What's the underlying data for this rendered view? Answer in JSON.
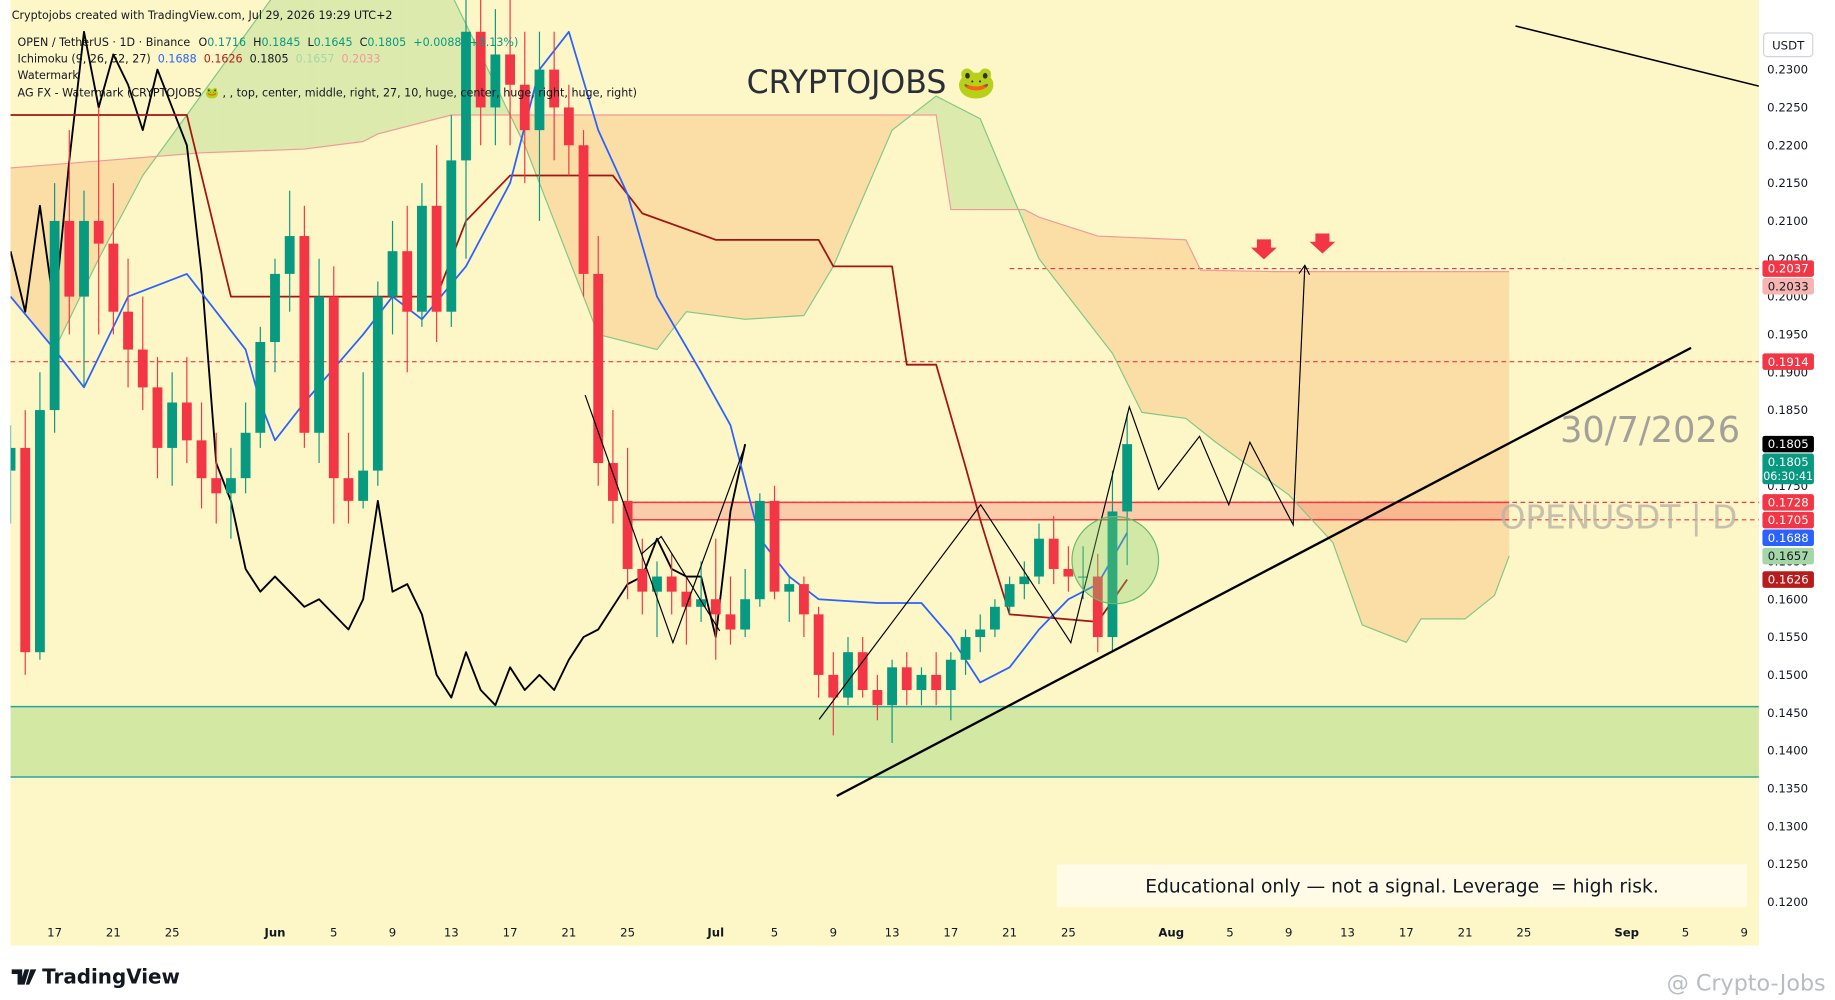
{
  "header": {
    "credit": "Cryptojobs created with TradingView.com, Jul 29, 2026 19:29 UTC+2",
    "symbol": "OPEN / TetherUS · 1D · Binance",
    "ohlc": [
      {
        "key": "O",
        "value": "0.1716"
      },
      {
        "key": "H",
        "value": "0.1845"
      },
      {
        "key": "L",
        "value": "0.1645"
      },
      {
        "key": "C",
        "value": "0.1805"
      }
    ],
    "change": "+0.0088 (+5.13%)",
    "ichimoku_label": "Ichimoku (9, 26, 52, 27)",
    "ichimoku_values": [
      "0.1688",
      "0.1626",
      "0.1805",
      "0.1657",
      "0.2033"
    ],
    "watermark_label": "Watermark",
    "agfx_label": "AG FX - Watermark (CRYPTOJOBS 🐸 , , top, center, middle, right, 27, 10, huge, center, huge, right, huge, right)"
  },
  "watermark": {
    "title": "CRYPTOJOBS 🐸",
    "date": "30/7/2026",
    "symbol": "OPENUSDT | D"
  },
  "note": "Educational only — not a signal. Leverage  = high risk.",
  "footer": {
    "logo": "TradingView",
    "credit": "@ Crypto-Jobs"
  },
  "currency": "USDT",
  "chart_data": {
    "type": "candlestick",
    "x": [
      "2026-05-14",
      "2026-05-15",
      "2026-05-16",
      "2026-05-17",
      "2026-05-18",
      "2026-05-19",
      "2026-05-20",
      "2026-05-21",
      "2026-05-22",
      "2026-05-23",
      "2026-05-24",
      "2026-05-25",
      "2026-05-26",
      "2026-05-27",
      "2026-05-28",
      "2026-05-29",
      "2026-05-30",
      "2026-05-31",
      "2026-06-01",
      "2026-06-02",
      "2026-06-03",
      "2026-06-04",
      "2026-06-05",
      "2026-06-06",
      "2026-06-07",
      "2026-06-08",
      "2026-06-09",
      "2026-06-10",
      "2026-06-11",
      "2026-06-12",
      "2026-06-13",
      "2026-06-14",
      "2026-06-15",
      "2026-06-16",
      "2026-06-17",
      "2026-06-18",
      "2026-06-19",
      "2026-06-20",
      "2026-06-21",
      "2026-06-22",
      "2026-06-23",
      "2026-06-24",
      "2026-06-25",
      "2026-06-26",
      "2026-06-27",
      "2026-06-28",
      "2026-06-29",
      "2026-06-30",
      "2026-07-01",
      "2026-07-02",
      "2026-07-03",
      "2026-07-04",
      "2026-07-05",
      "2026-07-06",
      "2026-07-07",
      "2026-07-08",
      "2026-07-09",
      "2026-07-10",
      "2026-07-11",
      "2026-07-12",
      "2026-07-13",
      "2026-07-14",
      "2026-07-15",
      "2026-07-16",
      "2026-07-17",
      "2026-07-18",
      "2026-07-19",
      "2026-07-20",
      "2026-07-21",
      "2026-07-22",
      "2026-07-23",
      "2026-07-24",
      "2026-07-25",
      "2026-07-26",
      "2026-07-27",
      "2026-07-28",
      "2026-07-29"
    ],
    "open": [
      0.177,
      0.18,
      0.153,
      0.185,
      0.21,
      0.2,
      0.21,
      0.207,
      0.198,
      0.193,
      0.188,
      0.18,
      0.186,
      0.181,
      0.176,
      0.174,
      0.176,
      0.182,
      0.194,
      0.203,
      0.208,
      0.182,
      0.2,
      0.176,
      0.173,
      0.177,
      0.2,
      0.206,
      0.198,
      0.212,
      0.198,
      0.218,
      0.235,
      0.225,
      0.232,
      0.228,
      0.222,
      0.23,
      0.225,
      0.22,
      0.203,
      0.178,
      0.173,
      0.164,
      0.161,
      0.163,
      0.161,
      0.159,
      0.16,
      0.158,
      0.156,
      0.16,
      0.173,
      0.161,
      0.162,
      0.158,
      0.15,
      0.147,
      0.153,
      0.148,
      0.146,
      0.151,
      0.148,
      0.15,
      0.148,
      0.152,
      0.155,
      0.156,
      0.159,
      0.162,
      0.163,
      0.168,
      0.164,
      0.163,
      0.163,
      0.155,
      0.1716
    ],
    "high": [
      0.183,
      0.185,
      0.19,
      0.215,
      0.222,
      0.214,
      0.225,
      0.215,
      0.205,
      0.2,
      0.192,
      0.19,
      0.192,
      0.186,
      0.182,
      0.18,
      0.186,
      0.196,
      0.205,
      0.214,
      0.212,
      0.205,
      0.204,
      0.182,
      0.19,
      0.202,
      0.21,
      0.212,
      0.215,
      0.22,
      0.224,
      0.24,
      0.245,
      0.238,
      0.24,
      0.235,
      0.235,
      0.235,
      0.228,
      0.222,
      0.208,
      0.185,
      0.18,
      0.168,
      0.165,
      0.166,
      0.163,
      0.165,
      0.168,
      0.163,
      0.164,
      0.174,
      0.175,
      0.163,
      0.163,
      0.159,
      0.153,
      0.155,
      0.155,
      0.15,
      0.152,
      0.153,
      0.151,
      0.153,
      0.153,
      0.156,
      0.158,
      0.16,
      0.163,
      0.165,
      0.17,
      0.171,
      0.167,
      0.167,
      0.166,
      0.177,
      0.1845
    ],
    "low": [
      0.17,
      0.15,
      0.152,
      0.182,
      0.195,
      0.188,
      0.195,
      0.195,
      0.188,
      0.185,
      0.176,
      0.175,
      0.178,
      0.172,
      0.17,
      0.168,
      0.174,
      0.18,
      0.19,
      0.198,
      0.18,
      0.178,
      0.17,
      0.17,
      0.172,
      0.175,
      0.195,
      0.19,
      0.196,
      0.194,
      0.196,
      0.205,
      0.22,
      0.22,
      0.22,
      0.215,
      0.21,
      0.218,
      0.216,
      0.2,
      0.175,
      0.17,
      0.16,
      0.158,
      0.155,
      0.158,
      0.154,
      0.157,
      0.152,
      0.154,
      0.155,
      0.159,
      0.16,
      0.157,
      0.155,
      0.147,
      0.142,
      0.146,
      0.147,
      0.144,
      0.141,
      0.146,
      0.146,
      0.146,
      0.144,
      0.15,
      0.153,
      0.155,
      0.158,
      0.16,
      0.162,
      0.162,
      0.161,
      0.16,
      0.153,
      0.153,
      0.1645
    ],
    "close": [
      0.18,
      0.153,
      0.185,
      0.21,
      0.2,
      0.21,
      0.207,
      0.198,
      0.193,
      0.188,
      0.18,
      0.186,
      0.181,
      0.176,
      0.174,
      0.176,
      0.182,
      0.194,
      0.203,
      0.208,
      0.182,
      0.2,
      0.176,
      0.173,
      0.177,
      0.2,
      0.206,
      0.198,
      0.212,
      0.198,
      0.218,
      0.235,
      0.225,
      0.232,
      0.228,
      0.222,
      0.23,
      0.225,
      0.22,
      0.203,
      0.178,
      0.173,
      0.164,
      0.161,
      0.163,
      0.161,
      0.159,
      0.16,
      0.158,
      0.156,
      0.16,
      0.173,
      0.161,
      0.162,
      0.158,
      0.15,
      0.147,
      0.153,
      0.148,
      0.146,
      0.151,
      0.148,
      0.15,
      0.148,
      0.152,
      0.155,
      0.156,
      0.159,
      0.162,
      0.163,
      0.168,
      0.164,
      0.163,
      0.163,
      0.155,
      0.1716,
      0.1805
    ],
    "up_color": "#089981",
    "down_color": "#f23645",
    "ichimoku": {
      "cloud_up": "rgba(110,190,90,0.22)",
      "cloud_down": "rgba(245,150,70,0.25)",
      "conversion": {
        "color": "#2962ff",
        "x": [
          "2026-05-14",
          "2026-05-17",
          "2026-05-19",
          "2026-05-22",
          "2026-05-26",
          "2026-05-28",
          "2026-05-30",
          "2026-05-31",
          "2026-06-01",
          "2026-06-03",
          "2026-06-07",
          "2026-06-09",
          "2026-06-11",
          "2026-06-14",
          "2026-06-17",
          "2026-06-19",
          "2026-06-21",
          "2026-06-23",
          "2026-06-25",
          "2026-06-27",
          "2026-06-30",
          "2026-07-02",
          "2026-07-04",
          "2026-07-06",
          "2026-07-08",
          "2026-07-12",
          "2026-07-15",
          "2026-07-17",
          "2026-07-19",
          "2026-07-21",
          "2026-07-23",
          "2026-07-25",
          "2026-07-27",
          "2026-07-29"
        ],
        "values": [
          0.2,
          0.193,
          0.188,
          0.2,
          0.203,
          0.198,
          0.193,
          0.186,
          0.181,
          0.186,
          0.195,
          0.2,
          0.197,
          0.204,
          0.215,
          0.23,
          0.235,
          0.222,
          0.2135,
          0.2,
          0.19,
          0.183,
          0.168,
          0.163,
          0.16,
          0.1595,
          0.1595,
          0.155,
          0.149,
          0.151,
          0.156,
          0.16,
          0.162,
          0.1688
        ]
      },
      "base": {
        "color": "#a31515",
        "x": [
          "2026-05-14",
          "2026-05-26",
          "2026-05-29",
          "2026-06-12",
          "2026-06-14",
          "2026-06-17",
          "2026-06-24",
          "2026-06-26",
          "2026-07-01",
          "2026-07-08",
          "2026-07-09",
          "2026-07-13",
          "2026-07-14",
          "2026-07-16",
          "2026-07-18",
          "2026-07-19",
          "2026-07-21",
          "2026-07-27",
          "2026-07-29"
        ],
        "values": [
          0.224,
          0.224,
          0.2,
          0.2,
          0.21,
          0.216,
          0.216,
          0.211,
          0.2075,
          0.2075,
          0.204,
          0.204,
          0.191,
          0.191,
          0.1775,
          0.1705,
          0.158,
          0.157,
          0.1626
        ]
      },
      "lagging": {
        "color": "#000000",
        "x": [
          "2026-05-14",
          "2026-05-15",
          "2026-05-16",
          "2026-05-17",
          "2026-05-18",
          "2026-05-19",
          "2026-05-20",
          "2026-05-21",
          "2026-05-22",
          "2026-05-23",
          "2026-05-24",
          "2026-05-25",
          "2026-05-26",
          "2026-05-27",
          "2026-05-28",
          "2026-05-29",
          "2026-05-30",
          "2026-05-31",
          "2026-06-01",
          "2026-06-02",
          "2026-06-03",
          "2026-06-04",
          "2026-06-05",
          "2026-06-06",
          "2026-06-07",
          "2026-06-08",
          "2026-06-09",
          "2026-06-10",
          "2026-06-11",
          "2026-06-12",
          "2026-06-13",
          "2026-06-14",
          "2026-06-15",
          "2026-06-16",
          "2026-06-17",
          "2026-06-18",
          "2026-06-19",
          "2026-06-20",
          "2026-06-21",
          "2026-06-22",
          "2026-06-23",
          "2026-06-24",
          "2026-06-25",
          "2026-06-26",
          "2026-06-27",
          "2026-06-28",
          "2026-06-29",
          "2026-06-30",
          "2026-07-01",
          "2026-07-02",
          "2026-07-03"
        ],
        "values": [
          0.206,
          0.198,
          0.212,
          0.198,
          0.218,
          0.235,
          0.225,
          0.232,
          0.228,
          0.222,
          0.23,
          0.225,
          0.22,
          0.203,
          0.178,
          0.173,
          0.164,
          0.161,
          0.163,
          0.161,
          0.159,
          0.16,
          0.158,
          0.156,
          0.16,
          0.173,
          0.161,
          0.162,
          0.158,
          0.15,
          0.147,
          0.153,
          0.148,
          0.146,
          0.151,
          0.148,
          0.15,
          0.148,
          0.152,
          0.155,
          0.156,
          0.159,
          0.162,
          0.163,
          0.168,
          0.164,
          0.163,
          0.163,
          0.155,
          0.1716,
          0.1805
        ]
      },
      "span_a": {
        "color": "#81c784",
        "x": [
          "2026-05-14",
          "2026-05-17",
          "2026-05-20",
          "2026-05-23",
          "2026-05-26",
          "2026-06-01",
          "2026-06-13",
          "2026-06-18",
          "2026-06-23",
          "2026-06-27",
          "2026-06-29",
          "2026-07-03",
          "2026-07-07",
          "2026-07-09",
          "2026-07-13",
          "2026-07-16",
          "2026-07-19",
          "2026-07-21",
          "2026-07-23",
          "2026-07-28",
          "2026-07-30",
          "2026-08-02",
          "2026-08-04",
          "2026-08-09",
          "2026-08-12",
          "2026-08-14",
          "2026-08-17",
          "2026-08-18",
          "2026-08-21",
          "2026-08-23",
          "2026-08-24"
        ],
        "values": [
          0.2,
          0.193,
          0.205,
          0.216,
          0.224,
          0.24,
          0.24,
          0.22,
          0.195,
          0.193,
          0.198,
          0.197,
          0.1975,
          0.204,
          0.222,
          0.2265,
          0.2235,
          0.2142,
          0.205,
          0.1925,
          0.1847,
          0.1839,
          0.1808,
          0.1738,
          0.1675,
          0.1566,
          0.1543,
          0.1574,
          0.1574,
          0.1605,
          0.1657
        ]
      },
      "span_b": {
        "color": "#ef9a9a",
        "x": [
          "2026-05-14",
          "2026-05-27",
          "2026-06-03",
          "2026-06-07",
          "2026-06-08",
          "2026-06-13",
          "2026-07-16",
          "2026-07-17",
          "2026-07-22",
          "2026-07-23",
          "2026-07-27",
          "2026-08-02",
          "2026-08-03",
          "2026-08-08",
          "2026-08-24"
        ],
        "values": [
          0.217,
          0.219,
          0.2195,
          0.2205,
          0.2215,
          0.224,
          0.224,
          0.2115,
          0.2115,
          0.2105,
          0.208,
          0.2075,
          0.2035,
          0.2033,
          0.2033
        ]
      }
    },
    "zones": [
      {
        "top": 0.1728,
        "bottom": 0.1705,
        "from": "2026-06-25",
        "to": "2026-08-24",
        "fill": "rgba(242,54,69,0.22)",
        "stroke": "#f23645"
      },
      {
        "top": 0.1458,
        "bottom": 0.1365,
        "fill": "rgba(160,215,120,0.45)",
        "stroke": "#26a69a"
      }
    ],
    "price_labels": [
      {
        "value": 0.2037,
        "label": "0.2037",
        "bg": "#f23645",
        "fg": "#ffffff",
        "line_from": "2026-07-21"
      },
      {
        "value": 0.2033,
        "label": "0.2033",
        "bg": "#f7b4b0",
        "fg": "#131722"
      },
      {
        "value": 0.1914,
        "label": "0.1914",
        "bg": "#f23645",
        "fg": "#ffffff",
        "line_from": "2026-05-14"
      },
      {
        "value": 0.1805,
        "label": "0.1805",
        "bg": "#000000",
        "fg": "#ffffff"
      },
      {
        "value": 0.1805,
        "label": "0.1805",
        "sub": "06:30:41",
        "bg": "#089981",
        "fg": "#ffffff"
      },
      {
        "value": 0.1728,
        "label": "0.1728",
        "bg": "#f23645",
        "fg": "#ffffff",
        "line_from": "2026-06-25"
      },
      {
        "value": 0.1705,
        "label": "0.1705",
        "bg": "#f23645",
        "fg": "#ffffff",
        "line_from": "2026-06-25"
      },
      {
        "value": 0.1688,
        "label": "0.1688",
        "bg": "#2962ff",
        "fg": "#ffffff"
      },
      {
        "value": 0.1657,
        "label": "0.1657",
        "bg": "#a5d6a7",
        "fg": "#131722"
      },
      {
        "value": 0.1626,
        "label": "0.1626",
        "bg": "#b71c1c",
        "fg": "#ffffff"
      }
    ],
    "xlim": [
      "2026-05-14",
      "2026-09-10"
    ],
    "xticks": [
      {
        "value": "2026-05-17",
        "label": "17"
      },
      {
        "value": "2026-05-21",
        "label": "21"
      },
      {
        "value": "2026-05-25",
        "label": "25"
      },
      {
        "value": "2026-06-01",
        "label": "Jun"
      },
      {
        "value": "2026-06-05",
        "label": "5"
      },
      {
        "value": "2026-06-09",
        "label": "9"
      },
      {
        "value": "2026-06-13",
        "label": "13"
      },
      {
        "value": "2026-06-17",
        "label": "17"
      },
      {
        "value": "2026-06-21",
        "label": "21"
      },
      {
        "value": "2026-06-25",
        "label": "25"
      },
      {
        "value": "2026-07-01",
        "label": "Jul"
      },
      {
        "value": "2026-07-05",
        "label": "5"
      },
      {
        "value": "2026-07-09",
        "label": "9"
      },
      {
        "value": "2026-07-13",
        "label": "13"
      },
      {
        "value": "2026-07-17",
        "label": "17"
      },
      {
        "value": "2026-07-21",
        "label": "21"
      },
      {
        "value": "2026-07-25",
        "label": "25"
      },
      {
        "value": "2026-08-01",
        "label": "Aug"
      },
      {
        "value": "2026-08-05",
        "label": "5"
      },
      {
        "value": "2026-08-09",
        "label": "9"
      },
      {
        "value": "2026-08-13",
        "label": "13"
      },
      {
        "value": "2026-08-17",
        "label": "17"
      },
      {
        "value": "2026-08-21",
        "label": "21"
      },
      {
        "value": "2026-08-25",
        "label": "25"
      },
      {
        "value": "2026-09-01",
        "label": "Sep"
      },
      {
        "value": "2026-09-05",
        "label": "5"
      },
      {
        "value": "2026-09-09",
        "label": "9"
      }
    ],
    "ylim": [
      0.1142,
      0.2392
    ],
    "yticks": [
      {
        "value": 0.12,
        "label": "0.1200"
      },
      {
        "value": 0.125,
        "label": "0.1250"
      },
      {
        "value": 0.13,
        "label": "0.1300"
      },
      {
        "value": 0.135,
        "label": "0.1350"
      },
      {
        "value": 0.14,
        "label": "0.1400"
      },
      {
        "value": 0.145,
        "label": "0.1450"
      },
      {
        "value": 0.15,
        "label": "0.1500"
      },
      {
        "value": 0.155,
        "label": "0.1550"
      },
      {
        "value": 0.16,
        "label": "0.1600"
      },
      {
        "value": 0.165,
        "label": "0.1650"
      },
      {
        "value": 0.17,
        "label": "0.1700"
      },
      {
        "value": 0.175,
        "label": "0.1750"
      },
      {
        "value": 0.18,
        "label": "0.1800"
      },
      {
        "value": 0.185,
        "label": "0.1850"
      },
      {
        "value": 0.19,
        "label": "0.1900"
      },
      {
        "value": 0.195,
        "label": "0.1950"
      },
      {
        "value": 0.2,
        "label": "0.2000"
      },
      {
        "value": 0.205,
        "label": "0.2050"
      },
      {
        "value": 0.21,
        "label": "0.2100"
      },
      {
        "value": 0.215,
        "label": "0.2150"
      },
      {
        "value": 0.22,
        "label": "0.2200"
      },
      {
        "value": 0.225,
        "label": "0.2250"
      },
      {
        "value": 0.23,
        "label": "0.2300"
      }
    ],
    "grid": false
  }
}
